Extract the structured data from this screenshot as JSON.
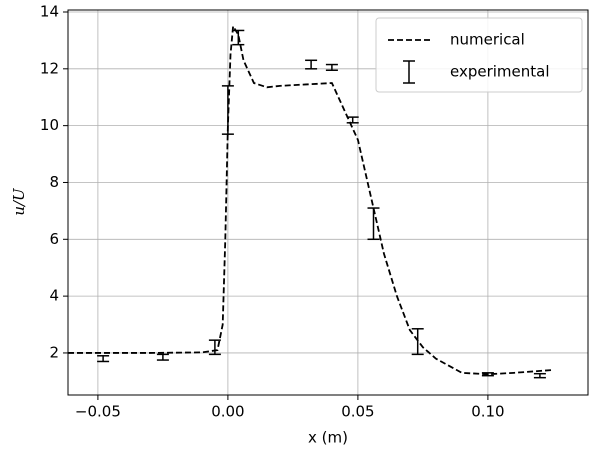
{
  "chart_data": {
    "type": "line",
    "xlabel": "x (m)",
    "ylabel": "u/U",
    "xlim": [
      -0.0615,
      0.1385
    ],
    "ylim": [
      0.52,
      14.07
    ],
    "xticks": [
      {
        "value": -0.05,
        "label": "−0.05"
      },
      {
        "value": 0.0,
        "label": "0.00"
      },
      {
        "value": 0.05,
        "label": "0.05"
      },
      {
        "value": 0.1,
        "label": "0.10"
      }
    ],
    "yticks": [
      2,
      4,
      6,
      8,
      10,
      12,
      14
    ],
    "grid": true,
    "legend": "upper right",
    "series": [
      {
        "name": "numerical",
        "style": "dashed",
        "color": "#000000",
        "x": [
          -0.0615,
          -0.03,
          -0.01,
          -0.004,
          -0.002,
          -0.001,
          0.0,
          0.001,
          0.002,
          0.004,
          0.006,
          0.01,
          0.015,
          0.02,
          0.03,
          0.04,
          0.045,
          0.05,
          0.055,
          0.06,
          0.065,
          0.07,
          0.075,
          0.08,
          0.09,
          0.1,
          0.11,
          0.125
        ],
        "values": [
          2.0,
          2.0,
          2.02,
          2.1,
          3,
          6,
          10,
          12.5,
          13.5,
          13.2,
          12.3,
          11.5,
          11.35,
          11.4,
          11.45,
          11.5,
          10.5,
          9.5,
          7.5,
          5.5,
          4.0,
          2.8,
          2.2,
          1.8,
          1.3,
          1.25,
          1.3,
          1.4
        ]
      },
      {
        "name": "experimental",
        "style": "errorbar",
        "color": "#000000",
        "x": [
          -0.048,
          -0.025,
          -0.005,
          0.0,
          0.004,
          0.032,
          0.04,
          0.048,
          0.056,
          0.073,
          0.1,
          0.12
        ],
        "values": [
          1.8,
          1.85,
          2.2,
          10.55,
          13.1,
          12.15,
          12.05,
          10.2,
          6.55,
          2.4,
          1.25,
          1.2
        ],
        "errors": [
          0.1,
          0.1,
          0.25,
          0.85,
          0.25,
          0.15,
          0.1,
          0.1,
          0.55,
          0.45,
          0.05,
          0.07
        ]
      }
    ]
  }
}
